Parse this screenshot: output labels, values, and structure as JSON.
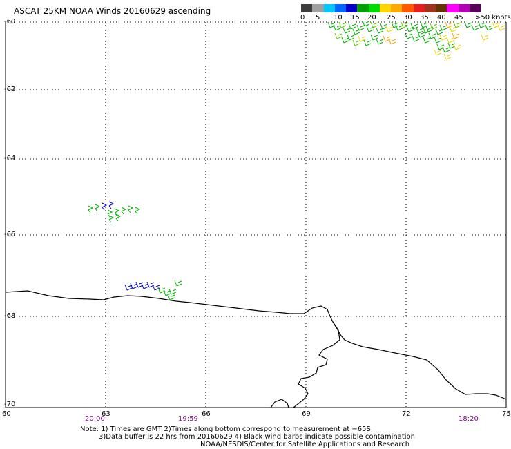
{
  "title": "ASCAT 25KM NOAA Winds 20160629 ascending",
  "colorbar": {
    "colors": [
      "#3c3c3c",
      "#a0a0a0",
      "#00c8ff",
      "#0064ff",
      "#0000c8",
      "#00a000",
      "#00dc00",
      "#ffd700",
      "#ffaa00",
      "#ff5a00",
      "#e61e1e",
      "#a0321e",
      "#643200",
      "#ff00ff",
      "#b400b4",
      "#5a005a"
    ],
    "labels": [
      "0",
      "5",
      "10",
      "15",
      "20",
      "25",
      "30",
      "35",
      "40",
      "45",
      ">50 knots"
    ]
  },
  "axes": {
    "y_labels": [
      "-60",
      "-62",
      "-64",
      "-66",
      "-68",
      "-70"
    ],
    "x_labels": [
      "60",
      "63",
      "66",
      "69",
      "72",
      "75"
    ]
  },
  "times": [
    "20:00",
    "19:59",
    "18:20"
  ],
  "notes": {
    "line1": "Note: 1) Times are GMT 2)Times along bottom correspond to measurement at −65S",
    "line2": "3)Data buffer is 22 hrs from 20160629 4) Black wind barbs indicate possible contamination",
    "line3": "NOAA/NESDIS/Center for Satellite Applications and Research"
  },
  "barb_colors": {
    "blue": "#0000c8",
    "green": "#00b400",
    "lightgreen": "#6acd00",
    "yellow": "#f0d400",
    "orange": "#ff9600"
  }
}
